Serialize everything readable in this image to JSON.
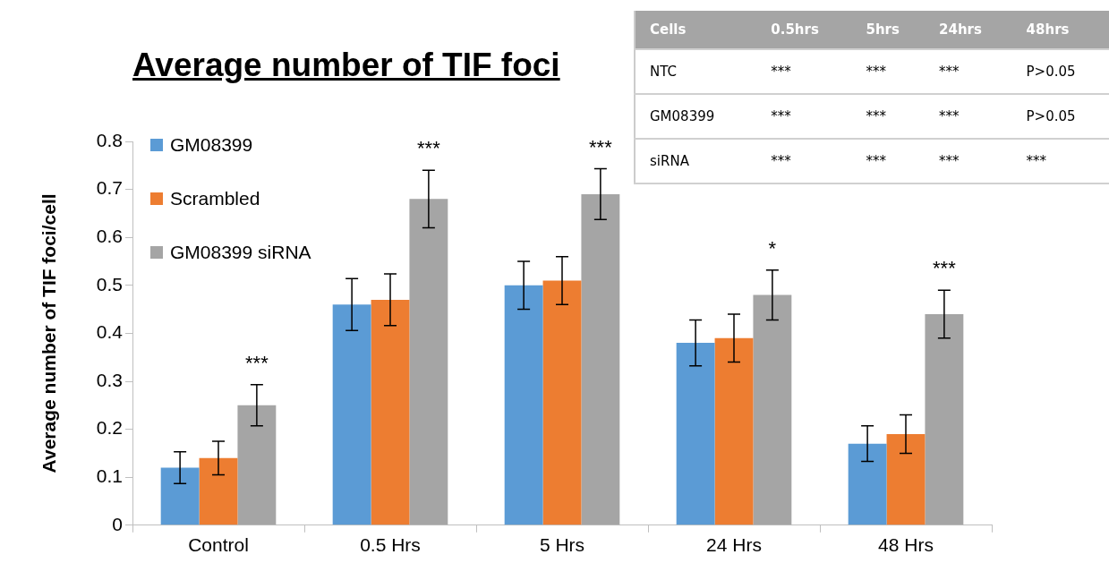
{
  "chart_data": {
    "type": "bar",
    "title": "Average number of TIF foci",
    "ylabel": "Average number of TIF foci/cell",
    "categories": [
      "Control",
      "0.5 Hrs",
      "5 Hrs",
      "24 Hrs",
      "48 Hrs"
    ],
    "series": [
      {
        "name": "GM08399",
        "color": "#5b9bd5",
        "values": [
          0.12,
          0.46,
          0.5,
          0.38,
          0.17
        ],
        "errors": [
          0.033,
          0.054,
          0.05,
          0.048,
          0.037
        ]
      },
      {
        "name": "Scrambled",
        "color": "#ed7d31",
        "values": [
          0.14,
          0.47,
          0.51,
          0.39,
          0.19
        ],
        "errors": [
          0.035,
          0.054,
          0.05,
          0.05,
          0.04
        ]
      },
      {
        "name": "GM08399 siRNA",
        "color": "#a5a5a5",
        "values": [
          0.25,
          0.68,
          0.69,
          0.48,
          0.44
        ],
        "errors": [
          0.043,
          0.06,
          0.053,
          0.052,
          0.05
        ]
      }
    ],
    "ylim": [
      0,
      0.8
    ],
    "yticks": [
      0,
      0.1,
      0.2,
      0.3,
      0.4,
      0.5,
      0.6,
      0.7,
      0.8
    ],
    "grid": false,
    "legend": "top left",
    "annotations": [
      "***",
      "***",
      "***",
      "*",
      "***",
      "Cells",
      "0.5hrs",
      "5hrs",
      "24hrs",
      "48hrs",
      "NTC",
      "***",
      "***",
      "***",
      "P>0.05",
      "GM08399",
      "***",
      "***",
      "***",
      "P>0.05",
      "siRNA",
      "***",
      "***",
      "***",
      "***"
    ]
  }
}
